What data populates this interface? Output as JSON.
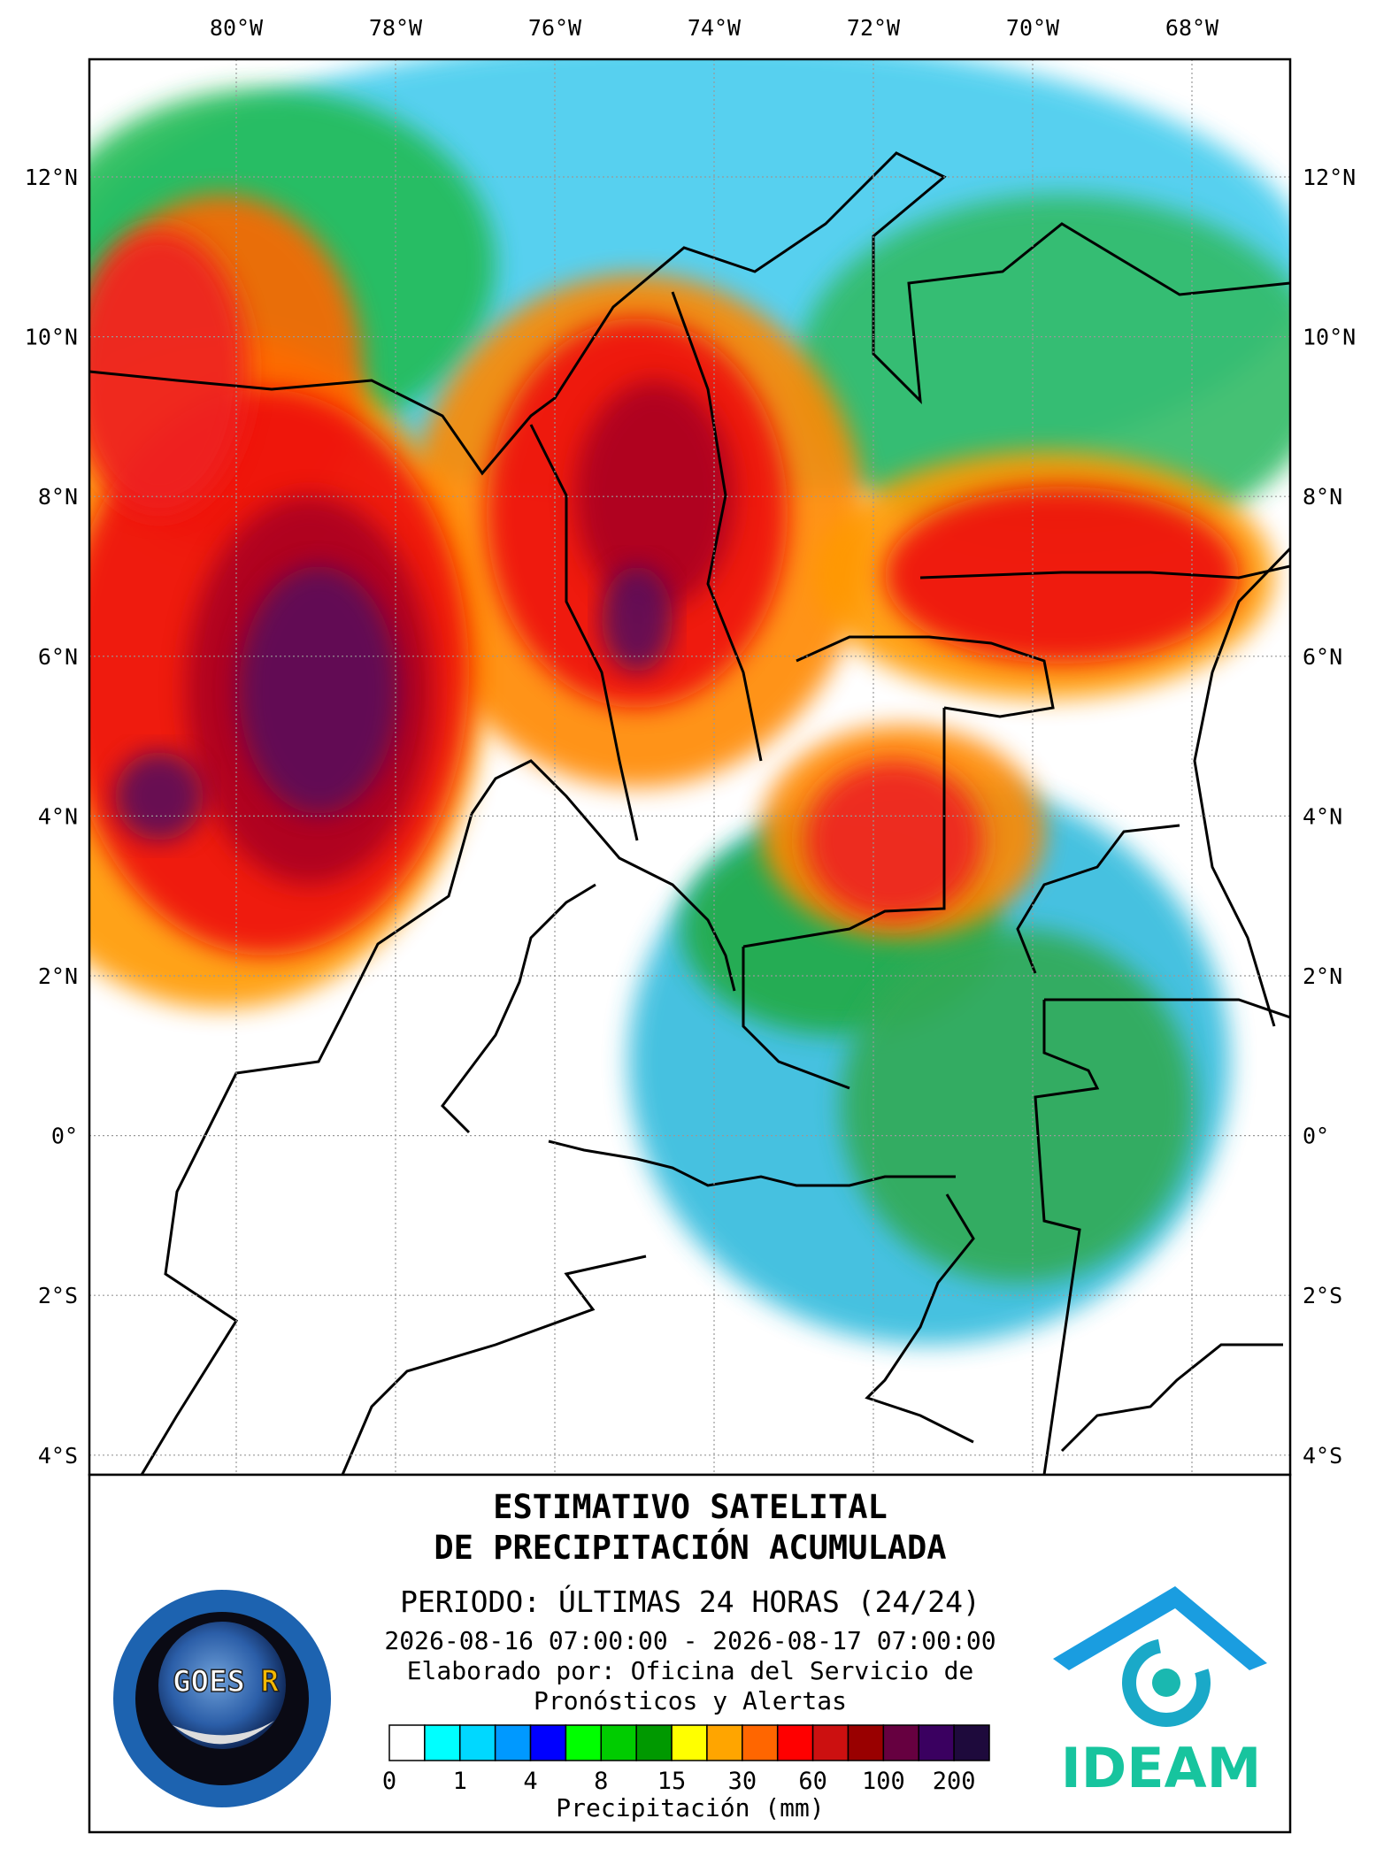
{
  "map": {
    "lon_labels": [
      {
        "value": -80,
        "label": "80°W"
      },
      {
        "value": -78,
        "label": "78°W"
      },
      {
        "value": -76,
        "label": "76°W"
      },
      {
        "value": -74,
        "label": "74°W"
      },
      {
        "value": -72,
        "label": "72°W"
      },
      {
        "value": -70,
        "label": "70°W"
      },
      {
        "value": -68,
        "label": "68°W"
      }
    ],
    "lat_labels": [
      {
        "value": 12,
        "label": "12°N"
      },
      {
        "value": 10,
        "label": "10°N"
      },
      {
        "value": 8,
        "label": "8°N"
      },
      {
        "value": 6,
        "label": "6°N"
      },
      {
        "value": 4,
        "label": "4°N"
      },
      {
        "value": 2,
        "label": "2°N"
      },
      {
        "value": 0,
        "label": "0°"
      },
      {
        "value": -2,
        "label": "2°S"
      },
      {
        "value": -4,
        "label": "4°S"
      }
    ]
  },
  "panel": {
    "title": [
      "ESTIMATIVO SATELITAL",
      "DE PRECIPITACIÓN ACUMULADA"
    ],
    "period": "PERIODO: ÚLTIMAS 24 HORAS (24/24)",
    "dates": "2026-08-16 07:00:00 - 2026-08-17 07:00:00",
    "credit": [
      "Elaborado por: Oficina del Servicio de",
      "Pronósticos y Alertas"
    ],
    "legend": {
      "colors": [
        "#ffffff",
        "#00ffff",
        "#00d8ff",
        "#0099ff",
        "#0000ff",
        "#00ff00",
        "#00cc00",
        "#009900",
        "#ffff00",
        "#ffa500",
        "#ff6600",
        "#ff0000",
        "#cc1010",
        "#990000",
        "#660040",
        "#3a0060",
        "#1e0a3c"
      ],
      "ticks": [
        "0",
        "1",
        "4",
        "8",
        "15",
        "30",
        "60",
        "100",
        "200"
      ],
      "label": "Precipitación (mm)"
    },
    "logos": {
      "goes": "GOES",
      "goes_r": "R",
      "ideam": "IDEAM"
    }
  }
}
